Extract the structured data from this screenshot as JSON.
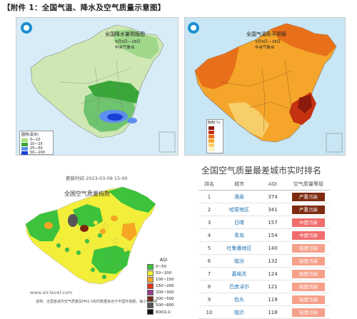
{
  "header": {
    "title": "【附件 1：全国气温、降水及空气质量示意图】"
  },
  "chart_data": [
    {
      "type": "map",
      "title": "全国降水量预报图",
      "date": "3月9日—18日",
      "source": "中央气象台",
      "legend_title": "图例(毫米)",
      "legend": [
        {
          "label": "0—10",
          "color": "#a6e37e"
        },
        {
          "label": "10—25",
          "color": "#3aa63a"
        },
        {
          "label": "25—50",
          "color": "#5d8ef0"
        },
        {
          "label": "50—100",
          "color": "#1a3fd6"
        }
      ]
    },
    {
      "type": "map",
      "title": "全国气温距平预报",
      "date": "3月9日—18日",
      "source": "中央气象台",
      "legend_title": "图例(℃)",
      "legend": [
        {
          "label": "",
          "color": "#8b1a0c"
        },
        {
          "label": "",
          "color": "#c5320f"
        },
        {
          "label": "",
          "color": "#e8701a"
        },
        {
          "label": "",
          "color": "#f5a62a"
        },
        {
          "label": "",
          "color": "#f7cf6a"
        },
        {
          "label": "",
          "color": "#fff2b8"
        }
      ]
    },
    {
      "type": "map",
      "title": "全国空气质量指数",
      "update": "更新时间 2023-03-09 15:00",
      "site": "www.air-level.com",
      "footer": "说明：全国各城市空气质量及PM2.5实时数据来自于中国环保部。每小时更新",
      "legend_title": "AQI",
      "legend": [
        {
          "label": "0~50",
          "color": "#3cc23c"
        },
        {
          "label": "50~100",
          "color": "#f2ee3a"
        },
        {
          "label": "100~150",
          "color": "#f5a623"
        },
        {
          "label": "150~200",
          "color": "#e8341c"
        },
        {
          "label": "200~300",
          "color": "#9b3c8b"
        },
        {
          "label": "300~500",
          "color": "#7e2510"
        },
        {
          "label": "500~800",
          "color": "#555555"
        },
        {
          "label": "800以上",
          "color": "#111111"
        }
      ]
    },
    {
      "type": "table",
      "title": "全国空气质量最差城市实时排名",
      "columns": [
        "排名",
        "城市",
        "AQI",
        "空气质量等级"
      ],
      "rows": [
        {
          "rank": "1",
          "city": "酒泉",
          "aqi": "374",
          "level": "严重污染",
          "cls": "severe"
        },
        {
          "rank": "2",
          "city": "哈密地区",
          "aqi": "341",
          "level": "严重污染",
          "cls": "severe"
        },
        {
          "rank": "3",
          "city": "日喀",
          "aqi": "157",
          "level": "中度污染",
          "cls": "moderate"
        },
        {
          "rank": "4",
          "city": "青岛",
          "aqi": "154",
          "level": "中度污染",
          "cls": "moderate"
        },
        {
          "rank": "5",
          "city": "吐鲁番地区",
          "aqi": "140",
          "level": "轻度污染",
          "cls": "light"
        },
        {
          "rank": "6",
          "city": "临汾",
          "aqi": "132",
          "level": "轻度污染",
          "cls": "light"
        },
        {
          "rank": "7",
          "city": "嘉峪关",
          "aqi": "124",
          "level": "轻度污染",
          "cls": "light"
        },
        {
          "rank": "8",
          "city": "巴彦淖尔",
          "aqi": "121",
          "level": "轻度污染",
          "cls": "light"
        },
        {
          "rank": "9",
          "city": "包头",
          "aqi": "119",
          "level": "轻度污染",
          "cls": "light"
        },
        {
          "rank": "10",
          "city": "临沂",
          "aqi": "118",
          "level": "轻度污染",
          "cls": "light"
        }
      ]
    }
  ]
}
